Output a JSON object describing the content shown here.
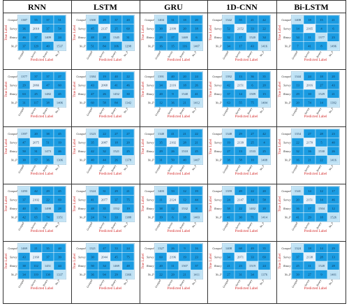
{
  "models": [
    "RNN",
    "LSTM",
    "GRU",
    "1D-CNN",
    "Bi-LSTM"
  ],
  "colors": {
    "cell": "#1b9ce2",
    "diag": "#e6f2fb",
    "diag_alt": "#bfe2f5",
    "axis_label": "#d42a2a"
  },
  "chart_data": {
    "type": "heatmap",
    "rows": 5,
    "cols": 5,
    "class_labels": [
      "Grasped",
      "Survey",
      "Rotary",
      "No_P"
    ],
    "xlabel": "Predicted Label",
    "ylabel": "True Label",
    "matrices": [
      [
        [
          [
            1387,
            55,
            37,
            51
          ],
          [
            36,
            2010,
            37,
            54
          ],
          [
            46,
            37,
            1409,
            24
          ],
          [
            37,
            129,
            40,
            1537
          ]
        ],
        [
          [
            1300,
            29,
            37,
            20
          ],
          [
            45,
            2137,
            25,
            60
          ],
          [
            48,
            28,
            1345,
            31
          ],
          [
            51,
            84,
            106,
            1298
          ]
        ],
        [
          [
            1404,
            31,
            18,
            20
          ],
          [
            30,
            2199,
            20,
            18
          ],
          [
            29,
            17,
            1469,
            6
          ],
          [
            16,
            15,
            116,
            1407
          ]
        ],
        [
          [
            1342,
            55,
            21,
            42
          ],
          [
            52,
            2152,
            33,
            22
          ],
          [
            32,
            17,
            1520,
            34
          ],
          [
            34,
            17,
            43,
            1416
          ]
        ],
        [
          [
            1408,
            18,
            15,
            21
          ],
          [
            14,
            2165,
            4,
            6
          ],
          [
            34,
            11,
            1377,
            23
          ],
          [
            7,
            41,
            8,
            1496
          ]
        ]
      ],
      [
        [
          [
            1377,
            37,
            37,
            27
          ],
          [
            29,
            2066,
            47,
            60
          ],
          [
            63,
            25,
            1482,
            45
          ],
          [
            31,
            117,
            38,
            1406
          ]
        ],
        [
          [
            1384,
            19,
            40,
            22
          ],
          [
            43,
            2068,
            41,
            46
          ],
          [
            47,
            26,
            1452,
            30
          ],
          [
            60,
            58,
            84,
            1342
          ]
        ],
        [
          [
            1391,
            40,
            20,
            24
          ],
          [
            34,
            2116,
            18,
            26
          ],
          [
            20,
            9,
            1540,
            41
          ],
          [
            12,
            36,
            21,
            1412
          ]
        ],
        [
          [
            1392,
            13,
            36,
            35
          ],
          [
            42,
            2151,
            6,
            20
          ],
          [
            37,
            14,
            1509,
            15
          ],
          [
            63,
            55,
            75,
            1404
          ]
        ],
        [
          [
            1344,
            24,
            18,
            20
          ],
          [
            13,
            2016,
            27,
            43
          ],
          [
            29,
            10,
            1529,
            21
          ],
          [
            20,
            74,
            14,
            1392
          ]
        ]
      ],
      [
        [
          [
            1397,
            20,
            38,
            45
          ],
          [
            47,
            2075,
            51,
            19
          ],
          [
            50,
            31,
            1473,
            46
          ],
          [
            30,
            57,
            36,
            1306
          ]
        ],
        [
          [
            1323,
            22,
            27,
            27
          ],
          [
            35,
            2087,
            18,
            20
          ],
          [
            42,
            32,
            1521,
            25
          ],
          [
            40,
            44,
            26,
            1378
          ]
        ],
        [
          [
            1340,
            41,
            21,
            22
          ],
          [
            35,
            2102,
            28,
            21
          ],
          [
            29,
            26,
            1510,
            25
          ],
          [
            31,
            50,
            40,
            1407
          ]
        ],
        [
          [
            1348,
            29,
            27,
            42
          ],
          [
            19,
            2139,
            25,
            4
          ],
          [
            27,
            13,
            1533,
            25
          ],
          [
            38,
            58,
            10,
            1408
          ]
        ],
        [
          [
            1354,
            27,
            28,
            23
          ],
          [
            22,
            2170,
            5,
            40
          ],
          [
            32,
            16,
            1530,
            26
          ],
          [
            16,
            21,
            22,
            1416
          ]
        ]
      ],
      [
        [
          [
            1293,
            42,
            29,
            45
          ],
          [
            37,
            2102,
            22,
            69
          ],
          [
            40,
            35,
            1498,
            28
          ],
          [
            42,
            65,
            74,
            1351
          ]
        ],
        [
          [
            1324,
            31,
            29,
            21
          ],
          [
            41,
            2077,
            37,
            75
          ],
          [
            48,
            35,
            1552,
            19
          ],
          [
            24,
            74,
            33,
            1388
          ]
        ],
        [
          [
            1403,
            33,
            12,
            19
          ],
          [
            11,
            2124,
            12,
            44
          ],
          [
            38,
            12,
            1532,
            8
          ],
          [
            19,
            6,
            18,
            1403
          ]
        ],
        [
          [
            1359,
            49,
            22,
            20
          ],
          [
            24,
            2147,
            14,
            58
          ],
          [
            58,
            22,
            1402,
            20
          ],
          [
            41,
            30,
            71,
            1414
          ]
        ],
        [
          [
            1341,
            14,
            12,
            17
          ],
          [
            20,
            2151,
            14,
            46
          ],
          [
            16,
            17,
            1504,
            12
          ],
          [
            41,
            29,
            18,
            1526
          ]
        ]
      ],
      [
        [
          [
            1469,
            21,
            35,
            40
          ],
          [
            43,
            2160,
            37,
            39
          ],
          [
            38,
            112,
            1451,
            44
          ],
          [
            34,
            119,
            130,
            1337
          ]
        ],
        [
          [
            1321,
            47,
            33,
            24
          ],
          [
            30,
            2044,
            45,
            75
          ],
          [
            50,
            34,
            1469,
            48
          ],
          [
            36,
            94,
            29,
            1366
          ]
        ],
        [
          [
            1327,
            26,
            9,
            16
          ],
          [
            60,
            2196,
            19,
            23
          ],
          [
            20,
            11,
            1507,
            37
          ],
          [
            22,
            29,
            21,
            1411
          ]
        ],
        [
          [
            1408,
            68,
            49,
            35
          ],
          [
            34,
            2071,
            33,
            69
          ],
          [
            21,
            23,
            1519,
            24
          ],
          [
            27,
            31,
            34,
            1376
          ]
        ],
        [
          [
            1324,
            18,
            14,
            29
          ],
          [
            37,
            2138,
            28,
            13
          ],
          [
            25,
            11,
            1528,
            28
          ],
          [
            39,
            27,
            9,
            1401
          ]
        ]
      ]
    ]
  }
}
